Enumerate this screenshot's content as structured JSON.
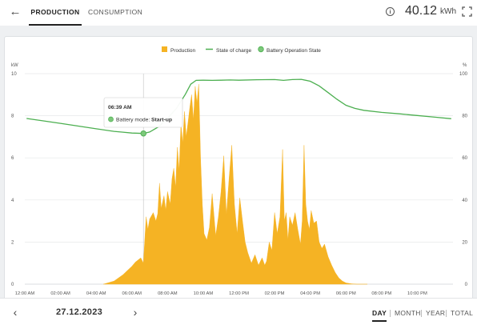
{
  "header": {
    "back_icon": "arrow-left-icon",
    "tabs": [
      {
        "label": "PRODUCTION",
        "active": true
      },
      {
        "label": "CONSUMPTION",
        "active": false
      }
    ],
    "info_icon": "info-circle-icon",
    "total_value": "40.12",
    "total_unit": "kWh",
    "fullscreen_icon": "fullscreen-icon"
  },
  "legend": [
    {
      "label": "Production",
      "color": "#f5b324",
      "marker": "square"
    },
    {
      "label": "State of charge",
      "color": "#4caf50",
      "marker": "line"
    },
    {
      "label": "Battery Operation State",
      "color": "#7cc87a",
      "marker": "circle"
    }
  ],
  "tooltip": {
    "time": "06:39 AM",
    "label": "Battery mode:",
    "value": "Start-up"
  },
  "chart_data": {
    "type": "area",
    "y_left_unit": "kW",
    "y_right_unit": "%",
    "y_left_ticks": [
      "0",
      "2",
      "4",
      "6",
      "8",
      "10"
    ],
    "y_right_ticks": [
      "0",
      "20",
      "40",
      "60",
      "80",
      "100"
    ],
    "ylim_left": [
      0,
      10
    ],
    "ylim_right": [
      0,
      100
    ],
    "x_ticks": [
      "12:00 AM",
      "02:00 AM",
      "04:00 AM",
      "06:00 AM",
      "08:00 AM",
      "10:00 AM",
      "12:00 PM",
      "02:00 PM",
      "04:00 PM",
      "06:00 PM",
      "08:00 PM",
      "10:00 PM"
    ],
    "x_range_hours": [
      0,
      24
    ],
    "grid": "horizontal",
    "series": [
      {
        "name": "Production",
        "axis": "left",
        "color": "#f5b324",
        "x": [
          4.4,
          5.0,
          5.5,
          6.0,
          6.2,
          6.5,
          6.65,
          6.8,
          6.9,
          7.0,
          7.2,
          7.35,
          7.45,
          7.55,
          7.65,
          7.8,
          7.9,
          8.0,
          8.15,
          8.25,
          8.35,
          8.45,
          8.55,
          8.65,
          8.75,
          8.85,
          8.95,
          9.05,
          9.15,
          9.25,
          9.35,
          9.45,
          9.55,
          9.65,
          9.75,
          9.85,
          9.95,
          10.05,
          10.2,
          10.35,
          10.5,
          10.7,
          10.85,
          11.0,
          11.15,
          11.3,
          11.45,
          11.6,
          11.75,
          11.9,
          12.05,
          12.2,
          12.35,
          12.5,
          12.7,
          12.9,
          13.1,
          13.3,
          13.45,
          13.55,
          13.7,
          13.85,
          14.0,
          14.15,
          14.3,
          14.45,
          14.55,
          14.65,
          14.75,
          14.85,
          15.0,
          15.15,
          15.3,
          15.45,
          15.55,
          15.65,
          15.75,
          15.85,
          15.95,
          16.05,
          16.2,
          16.35,
          16.5,
          16.65,
          16.8,
          17.0,
          17.2,
          17.4,
          17.6,
          17.8,
          18.0,
          18.3,
          18.6,
          18.9,
          19.2
        ],
        "values": [
          0,
          0.15,
          0.45,
          0.85,
          1.05,
          1.25,
          1.0,
          3.2,
          2.6,
          3.1,
          3.4,
          3.0,
          3.35,
          4.8,
          3.6,
          4.2,
          3.5,
          4.4,
          3.8,
          5.0,
          5.5,
          4.6,
          6.5,
          5.4,
          7.6,
          6.7,
          8.2,
          7.0,
          7.7,
          8.4,
          9.0,
          7.8,
          9.4,
          8.6,
          9.5,
          6.0,
          3.8,
          2.4,
          2.1,
          2.7,
          4.3,
          2.3,
          3.2,
          4.4,
          6.1,
          3.3,
          5.0,
          6.6,
          3.8,
          2.4,
          4.1,
          3.0,
          2.0,
          1.5,
          1.0,
          1.4,
          0.9,
          1.25,
          0.9,
          1.1,
          2.0,
          1.6,
          3.4,
          2.4,
          3.2,
          6.4,
          3.0,
          3.4,
          2.1,
          3.2,
          2.8,
          3.4,
          2.6,
          1.9,
          3.0,
          6.6,
          3.8,
          3.0,
          2.6,
          3.5,
          2.9,
          3.0,
          2.0,
          1.7,
          1.9,
          1.3,
          0.9,
          0.55,
          0.3,
          0.15,
          0.06,
          0.02,
          0,
          0,
          0
        ]
      },
      {
        "name": "State of charge",
        "axis": "right",
        "color": "#4caf50",
        "x": [
          0.1,
          1.0,
          2.0,
          3.0,
          4.0,
          5.0,
          5.5,
          6.0,
          6.65,
          7.0,
          7.5,
          8.0,
          8.5,
          9.0,
          9.3,
          9.6,
          10.0,
          10.5,
          11.0,
          11.5,
          12.0,
          13.0,
          14.0,
          14.5,
          15.0,
          15.5,
          16.0,
          16.5,
          17.0,
          17.5,
          18.0,
          18.5,
          19.0,
          20.0,
          21.0,
          22.0,
          23.0,
          23.9
        ],
        "values": [
          78.7,
          77.6,
          76.4,
          75.1,
          73.8,
          72.6,
          72.2,
          71.8,
          71.6,
          72.3,
          74.8,
          78.8,
          83.5,
          90.2,
          95.0,
          96.8,
          96.9,
          96.8,
          96.9,
          97.0,
          96.9,
          97.1,
          97.2,
          96.8,
          97.2,
          97.3,
          96.4,
          94.2,
          91.0,
          87.8,
          85.0,
          83.5,
          82.6,
          81.6,
          80.9,
          80.1,
          79.3,
          78.6
        ]
      },
      {
        "name": "Battery Operation State",
        "axis": "right",
        "color": "#7cc87a",
        "x": [
          6.65
        ],
        "values": [
          71.6
        ]
      }
    ]
  },
  "footer": {
    "prev_icon": "chevron-left-icon",
    "date": "27.12.2023",
    "next_icon": "chevron-right-icon",
    "periods": [
      {
        "label": "DAY",
        "active": true
      },
      {
        "label": "MONTH",
        "active": false
      },
      {
        "label": "YEAR",
        "active": false
      },
      {
        "label": "TOTAL",
        "active": false
      }
    ]
  }
}
